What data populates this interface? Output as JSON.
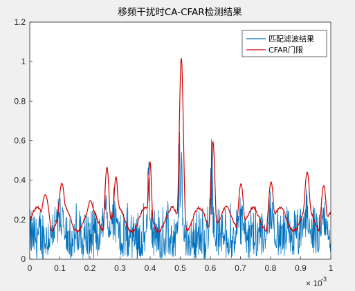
{
  "chart_data": {
    "type": "line",
    "title": "移频干扰时CA-CFAR检测结果",
    "xlabel": "",
    "ylabel": "",
    "xlim": [
      0,
      1
    ],
    "ylim": [
      0,
      1.2
    ],
    "x_exponent_label": "× 10",
    "x_exponent_power": "-3",
    "xticks": [
      "0",
      "0.1",
      "0.2",
      "0.3",
      "0.4",
      "0.5",
      "0.6",
      "0.7",
      "0.8",
      "0.9",
      "1"
    ],
    "yticks": [
      "0",
      "0.2",
      "0.4",
      "0.6",
      "0.8",
      "1",
      "1.2"
    ],
    "grid": false,
    "legend_position": "top-right",
    "series": [
      {
        "name": "匹配滤波结果",
        "color": "#0072bd",
        "peaks": [
          {
            "x": 0.1,
            "y": 0.38,
            "w": 0.012
          },
          {
            "x": 0.25,
            "y": 0.4,
            "w": 0.01
          },
          {
            "x": 0.28,
            "y": 0.38,
            "w": 0.01
          },
          {
            "x": 0.395,
            "y": 0.5,
            "w": 0.006
          },
          {
            "x": 0.5,
            "y": 0.9,
            "w": 0.006
          },
          {
            "x": 0.605,
            "y": 0.65,
            "w": 0.006
          },
          {
            "x": 0.7,
            "y": 0.33,
            "w": 0.01
          },
          {
            "x": 0.8,
            "y": 0.35,
            "w": 0.01
          },
          {
            "x": 0.92,
            "y": 0.38,
            "w": 0.01
          },
          {
            "x": 0.98,
            "y": 0.33,
            "w": 0.01
          }
        ],
        "floor_range": [
          0.0,
          0.3
        ]
      },
      {
        "name": "CFAR门限",
        "color": "#d40000",
        "peaks": [
          {
            "x": 0.05,
            "y": 0.33,
            "w": 0.015
          },
          {
            "x": 0.105,
            "y": 0.39,
            "w": 0.012
          },
          {
            "x": 0.2,
            "y": 0.3,
            "w": 0.015
          },
          {
            "x": 0.255,
            "y": 0.48,
            "w": 0.008
          },
          {
            "x": 0.285,
            "y": 0.43,
            "w": 0.008
          },
          {
            "x": 0.398,
            "y": 0.52,
            "w": 0.006
          },
          {
            "x": 0.502,
            "y": 1.06,
            "w": 0.007
          },
          {
            "x": 0.607,
            "y": 0.62,
            "w": 0.007
          },
          {
            "x": 0.7,
            "y": 0.39,
            "w": 0.01
          },
          {
            "x": 0.8,
            "y": 0.4,
            "w": 0.01
          },
          {
            "x": 0.92,
            "y": 0.45,
            "w": 0.01
          },
          {
            "x": 0.975,
            "y": 0.38,
            "w": 0.01
          }
        ],
        "floor_level": 0.2
      }
    ]
  }
}
